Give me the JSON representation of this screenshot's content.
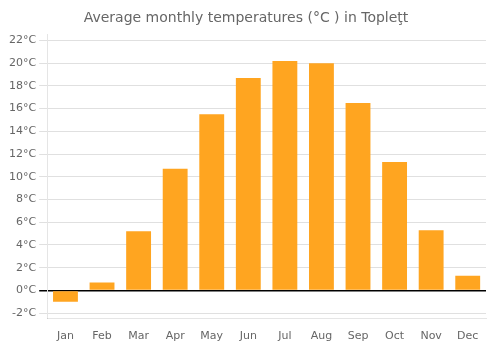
{
  "chart_data": {
    "type": "bar",
    "title": "Average monthly temperatures (°C ) in Topleţt",
    "categories": [
      "Jan",
      "Feb",
      "Mar",
      "Apr",
      "May",
      "Jun",
      "Jul",
      "Aug",
      "Sep",
      "Oct",
      "Nov",
      "Dec"
    ],
    "values": [
      -1.0,
      0.7,
      5.2,
      10.7,
      15.5,
      18.7,
      20.2,
      20.0,
      16.5,
      11.3,
      5.3,
      1.3
    ],
    "color": "#FFA520",
    "ylim": [
      -2.5,
      22.5
    ],
    "yticks": [
      {
        "value": -2,
        "label": "-2°C"
      },
      {
        "value": 0,
        "label": "0°C"
      },
      {
        "value": 2,
        "label": "2°C"
      },
      {
        "value": 4,
        "label": "4°C"
      },
      {
        "value": 6,
        "label": "6°C"
      },
      {
        "value": 8,
        "label": "8°C"
      },
      {
        "value": 10,
        "label": "10°C"
      },
      {
        "value": 12,
        "label": "12°C"
      },
      {
        "value": 14,
        "label": "14°C"
      },
      {
        "value": 16,
        "label": "16°C"
      },
      {
        "value": 18,
        "label": "18°C"
      },
      {
        "value": 20,
        "label": "20°C"
      },
      {
        "value": 22,
        "label": "22°C"
      }
    ],
    "grid": true
  }
}
